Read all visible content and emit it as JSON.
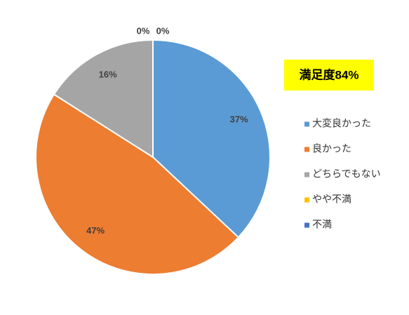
{
  "chart_data": {
    "type": "pie",
    "categories": [
      "大変良かった",
      "良かった",
      "どちらでもない",
      "やや不満",
      "不満"
    ],
    "values": [
      37,
      47,
      16,
      0,
      0
    ],
    "value_labels": [
      "37%",
      "47%",
      "16%",
      "0%",
      "0%"
    ],
    "colors": [
      "#5b9bd5",
      "#ed7d31",
      "#a5a5a5",
      "#ffc000",
      "#4472c4"
    ],
    "annotation": "満足度84%",
    "legend": "right"
  }
}
